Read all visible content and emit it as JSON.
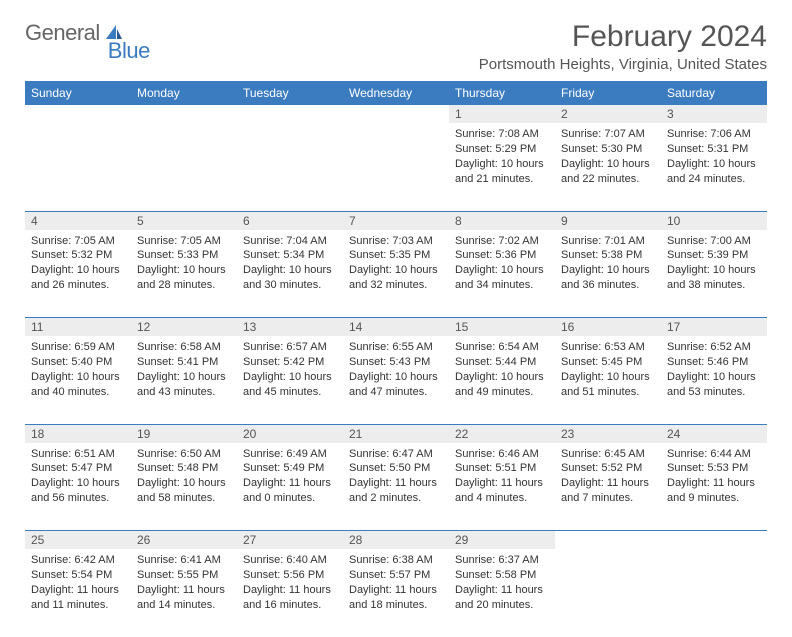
{
  "logo": {
    "text_general": "General",
    "text_blue": "Blue"
  },
  "title": "February 2024",
  "location": "Portsmouth Heights, Virginia, United States",
  "colors": {
    "header_blue": "#3b7bbf",
    "daynum_bg": "#ededed",
    "text_dark": "#333333",
    "text_medium": "#555555",
    "white": "#ffffff"
  },
  "day_headers": [
    "Sunday",
    "Monday",
    "Tuesday",
    "Wednesday",
    "Thursday",
    "Friday",
    "Saturday"
  ],
  "weeks": [
    [
      null,
      null,
      null,
      null,
      {
        "n": "1",
        "sunrise": "Sunrise: 7:08 AM",
        "sunset": "Sunset: 5:29 PM",
        "daylight": "Daylight: 10 hours and 21 minutes."
      },
      {
        "n": "2",
        "sunrise": "Sunrise: 7:07 AM",
        "sunset": "Sunset: 5:30 PM",
        "daylight": "Daylight: 10 hours and 22 minutes."
      },
      {
        "n": "3",
        "sunrise": "Sunrise: 7:06 AM",
        "sunset": "Sunset: 5:31 PM",
        "daylight": "Daylight: 10 hours and 24 minutes."
      }
    ],
    [
      {
        "n": "4",
        "sunrise": "Sunrise: 7:05 AM",
        "sunset": "Sunset: 5:32 PM",
        "daylight": "Daylight: 10 hours and 26 minutes."
      },
      {
        "n": "5",
        "sunrise": "Sunrise: 7:05 AM",
        "sunset": "Sunset: 5:33 PM",
        "daylight": "Daylight: 10 hours and 28 minutes."
      },
      {
        "n": "6",
        "sunrise": "Sunrise: 7:04 AM",
        "sunset": "Sunset: 5:34 PM",
        "daylight": "Daylight: 10 hours and 30 minutes."
      },
      {
        "n": "7",
        "sunrise": "Sunrise: 7:03 AM",
        "sunset": "Sunset: 5:35 PM",
        "daylight": "Daylight: 10 hours and 32 minutes."
      },
      {
        "n": "8",
        "sunrise": "Sunrise: 7:02 AM",
        "sunset": "Sunset: 5:36 PM",
        "daylight": "Daylight: 10 hours and 34 minutes."
      },
      {
        "n": "9",
        "sunrise": "Sunrise: 7:01 AM",
        "sunset": "Sunset: 5:38 PM",
        "daylight": "Daylight: 10 hours and 36 minutes."
      },
      {
        "n": "10",
        "sunrise": "Sunrise: 7:00 AM",
        "sunset": "Sunset: 5:39 PM",
        "daylight": "Daylight: 10 hours and 38 minutes."
      }
    ],
    [
      {
        "n": "11",
        "sunrise": "Sunrise: 6:59 AM",
        "sunset": "Sunset: 5:40 PM",
        "daylight": "Daylight: 10 hours and 40 minutes."
      },
      {
        "n": "12",
        "sunrise": "Sunrise: 6:58 AM",
        "sunset": "Sunset: 5:41 PM",
        "daylight": "Daylight: 10 hours and 43 minutes."
      },
      {
        "n": "13",
        "sunrise": "Sunrise: 6:57 AM",
        "sunset": "Sunset: 5:42 PM",
        "daylight": "Daylight: 10 hours and 45 minutes."
      },
      {
        "n": "14",
        "sunrise": "Sunrise: 6:55 AM",
        "sunset": "Sunset: 5:43 PM",
        "daylight": "Daylight: 10 hours and 47 minutes."
      },
      {
        "n": "15",
        "sunrise": "Sunrise: 6:54 AM",
        "sunset": "Sunset: 5:44 PM",
        "daylight": "Daylight: 10 hours and 49 minutes."
      },
      {
        "n": "16",
        "sunrise": "Sunrise: 6:53 AM",
        "sunset": "Sunset: 5:45 PM",
        "daylight": "Daylight: 10 hours and 51 minutes."
      },
      {
        "n": "17",
        "sunrise": "Sunrise: 6:52 AM",
        "sunset": "Sunset: 5:46 PM",
        "daylight": "Daylight: 10 hours and 53 minutes."
      }
    ],
    [
      {
        "n": "18",
        "sunrise": "Sunrise: 6:51 AM",
        "sunset": "Sunset: 5:47 PM",
        "daylight": "Daylight: 10 hours and 56 minutes."
      },
      {
        "n": "19",
        "sunrise": "Sunrise: 6:50 AM",
        "sunset": "Sunset: 5:48 PM",
        "daylight": "Daylight: 10 hours and 58 minutes."
      },
      {
        "n": "20",
        "sunrise": "Sunrise: 6:49 AM",
        "sunset": "Sunset: 5:49 PM",
        "daylight": "Daylight: 11 hours and 0 minutes."
      },
      {
        "n": "21",
        "sunrise": "Sunrise: 6:47 AM",
        "sunset": "Sunset: 5:50 PM",
        "daylight": "Daylight: 11 hours and 2 minutes."
      },
      {
        "n": "22",
        "sunrise": "Sunrise: 6:46 AM",
        "sunset": "Sunset: 5:51 PM",
        "daylight": "Daylight: 11 hours and 4 minutes."
      },
      {
        "n": "23",
        "sunrise": "Sunrise: 6:45 AM",
        "sunset": "Sunset: 5:52 PM",
        "daylight": "Daylight: 11 hours and 7 minutes."
      },
      {
        "n": "24",
        "sunrise": "Sunrise: 6:44 AM",
        "sunset": "Sunset: 5:53 PM",
        "daylight": "Daylight: 11 hours and 9 minutes."
      }
    ],
    [
      {
        "n": "25",
        "sunrise": "Sunrise: 6:42 AM",
        "sunset": "Sunset: 5:54 PM",
        "daylight": "Daylight: 11 hours and 11 minutes."
      },
      {
        "n": "26",
        "sunrise": "Sunrise: 6:41 AM",
        "sunset": "Sunset: 5:55 PM",
        "daylight": "Daylight: 11 hours and 14 minutes."
      },
      {
        "n": "27",
        "sunrise": "Sunrise: 6:40 AM",
        "sunset": "Sunset: 5:56 PM",
        "daylight": "Daylight: 11 hours and 16 minutes."
      },
      {
        "n": "28",
        "sunrise": "Sunrise: 6:38 AM",
        "sunset": "Sunset: 5:57 PM",
        "daylight": "Daylight: 11 hours and 18 minutes."
      },
      {
        "n": "29",
        "sunrise": "Sunrise: 6:37 AM",
        "sunset": "Sunset: 5:58 PM",
        "daylight": "Daylight: 11 hours and 20 minutes."
      },
      null,
      null
    ]
  ]
}
